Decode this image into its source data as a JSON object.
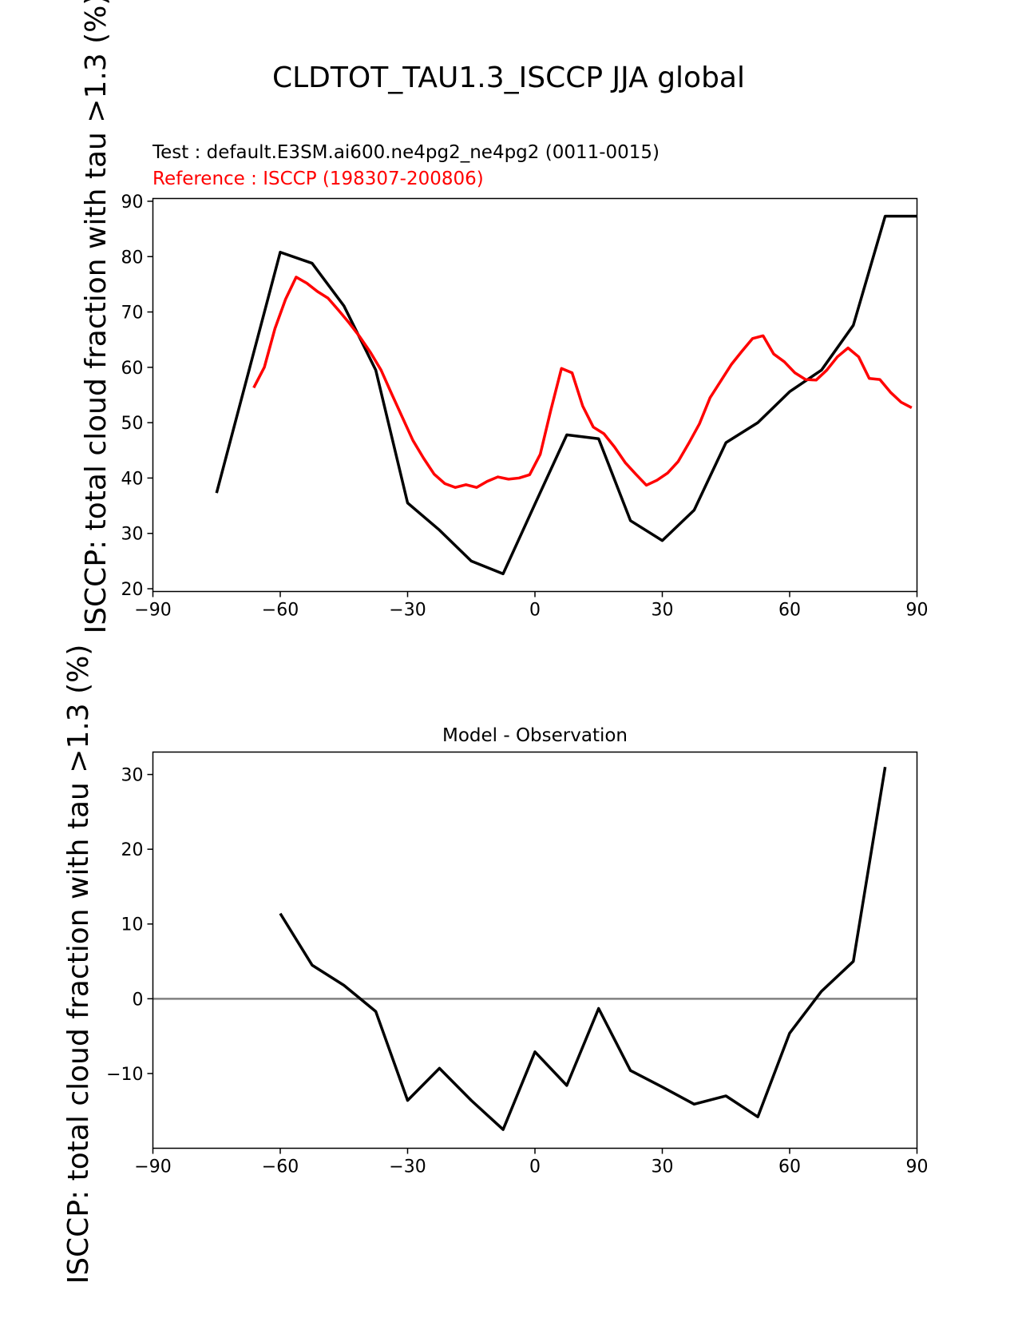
{
  "figure": {
    "title": "CLDTOT_TAU1.3_ISCCP JJA global"
  },
  "chart_data": [
    {
      "type": "line",
      "test_label": "Test : default.E3SM.ai600.ne4pg2_ne4pg2 (0011-0015)",
      "reference_label": "Reference : ISCCP (198307-200806)",
      "ylabel": "ISCCP: total cloud fraction with tau >1.3 (%)",
      "xlim": [
        -90,
        90
      ],
      "ylim": [
        19.5,
        90.5
      ],
      "xticks": [
        -90,
        -60,
        -30,
        0,
        30,
        60,
        90
      ],
      "yticks": [
        20,
        30,
        40,
        50,
        60,
        70,
        80,
        90
      ],
      "xtick_labels": [
        "−90",
        "−60",
        "−30",
        "0",
        "30",
        "60",
        "90"
      ],
      "ytick_labels": [
        "20",
        "30",
        "40",
        "50",
        "60",
        "70",
        "80",
        "90"
      ],
      "grid": false,
      "colors": {
        "test": "#000000",
        "reference": "#ff0000"
      },
      "series": [
        {
          "role": "test",
          "x": [
            -75,
            -60,
            -52.5,
            -45,
            -37.5,
            -30,
            -22.5,
            -15,
            -7.5,
            0,
            7.5,
            15,
            22.5,
            30,
            37.5,
            45,
            52.5,
            60,
            67.5,
            75,
            82.5,
            90
          ],
          "y": [
            37.3,
            80.8,
            78.8,
            71.1,
            59.5,
            35.5,
            30.6,
            25.0,
            22.7,
            35.3,
            47.8,
            47.1,
            32.3,
            28.7,
            34.2,
            46.4,
            50.0,
            55.6,
            59.5,
            67.6,
            87.3,
            87.3
          ]
        },
        {
          "role": "reference",
          "x": [
            -66.25,
            -63.75,
            -61.25,
            -58.75,
            -56.25,
            -53.75,
            -51.25,
            -48.75,
            -46.25,
            -43.75,
            -41.25,
            -38.75,
            -36.25,
            -33.75,
            -31.25,
            -28.75,
            -26.25,
            -23.75,
            -21.25,
            -18.75,
            -16.25,
            -13.75,
            -11.25,
            -8.75,
            -6.25,
            -3.75,
            -1.25,
            1.25,
            3.75,
            6.25,
            8.75,
            11.25,
            13.75,
            16.25,
            18.75,
            21.25,
            23.75,
            26.25,
            28.75,
            31.25,
            33.75,
            36.25,
            38.75,
            41.25,
            43.75,
            46.25,
            48.75,
            51.25,
            53.75,
            56.25,
            58.75,
            61.25,
            63.75,
            66.25,
            68.75,
            71.25,
            73.75,
            76.25,
            78.75,
            81.25,
            83.75,
            86.25,
            88.75
          ],
          "y": [
            56.3,
            60.0,
            67.0,
            72.3,
            76.3,
            75.2,
            73.7,
            72.5,
            70.3,
            68.0,
            65.5,
            62.7,
            59.5,
            55.2,
            51.0,
            46.8,
            43.6,
            40.7,
            39.0,
            38.3,
            38.8,
            38.3,
            39.4,
            40.2,
            39.8,
            40.0,
            40.6,
            44.3,
            52.3,
            59.8,
            59.0,
            53.0,
            49.2,
            48.0,
            45.6,
            42.8,
            40.7,
            38.7,
            39.6,
            40.9,
            43.0,
            46.3,
            49.8,
            54.5,
            57.5,
            60.5,
            62.9,
            65.2,
            65.7,
            62.4,
            61.0,
            59.0,
            57.8,
            57.7,
            59.5,
            61.9,
            63.5,
            61.9,
            58.0,
            57.8,
            55.5,
            53.7,
            52.7
          ]
        }
      ]
    },
    {
      "type": "line",
      "title": "Model - Observation",
      "ylabel": "ISCCP: total cloud fraction with tau >1.3 (%)",
      "xlim": [
        -90,
        90
      ],
      "ylim": [
        -20,
        33
      ],
      "xticks": [
        -90,
        -60,
        -30,
        0,
        30,
        60,
        90
      ],
      "yticks": [
        -10,
        0,
        10,
        20,
        30
      ],
      "xtick_labels": [
        "−90",
        "−60",
        "−30",
        "0",
        "30",
        "60",
        "90"
      ],
      "ytick_labels": [
        "−10",
        "0",
        "10",
        "20",
        "30"
      ],
      "grid": false,
      "zero_line": {
        "y": 0,
        "color": "#808080"
      },
      "colors": {
        "diff": "#000000"
      },
      "series": [
        {
          "role": "diff",
          "x": [
            -60,
            -52.5,
            -45,
            -37.5,
            -30,
            -22.5,
            -15,
            -7.5,
            0,
            7.5,
            15,
            22.5,
            30,
            37.5,
            45,
            52.5,
            60,
            67.5,
            75,
            82.5
          ],
          "y": [
            11.4,
            4.5,
            1.8,
            -1.7,
            -13.6,
            -9.3,
            -13.6,
            -17.5,
            -7.1,
            -11.6,
            -1.3,
            -9.6,
            -11.8,
            -14.1,
            -13.0,
            -15.8,
            -4.6,
            1.0,
            5.0,
            31.0
          ]
        }
      ]
    }
  ]
}
